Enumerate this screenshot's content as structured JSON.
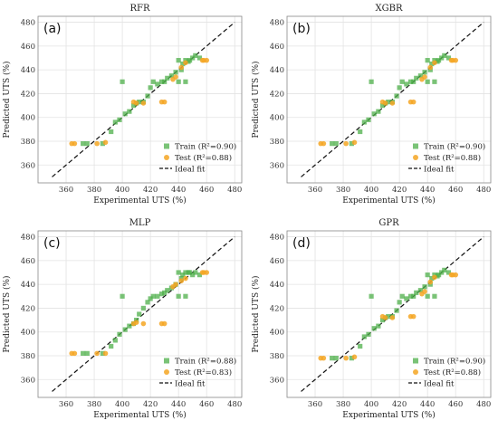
{
  "colors": {
    "train": "#4daf4a",
    "train_dark": "#2e7d32",
    "test": "#f5a623",
    "ideal": "#111111",
    "grid": "#e3e3e3",
    "frame": "#888888"
  },
  "chart_data": [
    {
      "type": "scatter",
      "title": "RFR",
      "panel_label": "(a)",
      "xlabel": "Experimental UTS (%)",
      "ylabel": "Predicted UTS (%)",
      "xlim": [
        340,
        485
      ],
      "ylim": [
        345,
        485
      ],
      "xticks": [
        "360",
        "380",
        "400",
        "420",
        "440",
        "460",
        "480"
      ],
      "yticks": [
        "360",
        "380",
        "400",
        "420",
        "440",
        "460",
        "480"
      ],
      "grid": true,
      "legend_position": "lower-right",
      "legend": [
        "Train (R²=0.90)",
        "Test (R²=0.88)",
        "Ideal fit"
      ],
      "ideal_fit": [
        [
          350,
          350
        ],
        [
          480,
          480
        ]
      ],
      "series": [
        {
          "name": "Train (R²=0.90)",
          "marker": "square",
          "points": [
            [
              372,
              378
            ],
            [
              375,
              378
            ],
            [
              386,
              378
            ],
            [
              392,
              388
            ],
            [
              395,
              396
            ],
            [
              398,
              398
            ],
            [
              400,
              430
            ],
            [
              402,
              403
            ],
            [
              405,
              405
            ],
            [
              408,
              410
            ],
            [
              410,
              412
            ],
            [
              412,
              413
            ],
            [
              415,
              413
            ],
            [
              418,
              418
            ],
            [
              420,
              425
            ],
            [
              422,
              430
            ],
            [
              425,
              428
            ],
            [
              428,
              430
            ],
            [
              430,
              430
            ],
            [
              432,
              433
            ],
            [
              435,
              435
            ],
            [
              438,
              438
            ],
            [
              440,
              430
            ],
            [
              440,
              448
            ],
            [
              442,
              440
            ],
            [
              443,
              445
            ],
            [
              445,
              448
            ],
            [
              445,
              430
            ],
            [
              447,
              447
            ],
            [
              448,
              448
            ],
            [
              450,
              450
            ],
            [
              452,
              452
            ],
            [
              455,
              450
            ]
          ]
        },
        {
          "name": "Test (R²=0.88)",
          "marker": "circle",
          "points": [
            [
              364,
              378
            ],
            [
              366,
              378
            ],
            [
              382,
              378
            ],
            [
              388,
              379
            ],
            [
              408,
              413
            ],
            [
              410,
              412
            ],
            [
              415,
              412
            ],
            [
              428,
              413
            ],
            [
              430,
              413
            ],
            [
              436,
              432
            ],
            [
              438,
              434
            ],
            [
              442,
              442
            ],
            [
              445,
              446
            ],
            [
              457,
              448
            ],
            [
              458,
              448
            ],
            [
              460,
              448
            ]
          ]
        }
      ]
    },
    {
      "type": "scatter",
      "title": "XGBR",
      "panel_label": "(b)",
      "xlabel": "Experimental UTS (%)",
      "ylabel": "Predicted UTS (%)",
      "xlim": [
        340,
        485
      ],
      "ylim": [
        345,
        485
      ],
      "xticks": [
        "360",
        "380",
        "400",
        "420",
        "440",
        "460",
        "480"
      ],
      "yticks": [
        "360",
        "380",
        "400",
        "420",
        "440",
        "460",
        "480"
      ],
      "grid": true,
      "legend_position": "lower-right",
      "legend": [
        "Train (R²=0.90)",
        "Test (R²=0.88)",
        "Ideal fit"
      ],
      "ideal_fit": [
        [
          350,
          350
        ],
        [
          480,
          480
        ]
      ],
      "series": [
        {
          "name": "Train (R²=0.90)",
          "marker": "square",
          "points": [
            [
              372,
              378
            ],
            [
              375,
              378
            ],
            [
              386,
              378
            ],
            [
              392,
              388
            ],
            [
              395,
              396
            ],
            [
              398,
              398
            ],
            [
              400,
              430
            ],
            [
              402,
              403
            ],
            [
              405,
              405
            ],
            [
              408,
              410
            ],
            [
              410,
              412
            ],
            [
              412,
              413
            ],
            [
              415,
              413
            ],
            [
              418,
              418
            ],
            [
              420,
              425
            ],
            [
              422,
              430
            ],
            [
              425,
              428
            ],
            [
              428,
              430
            ],
            [
              430,
              430
            ],
            [
              432,
              433
            ],
            [
              435,
              435
            ],
            [
              438,
              438
            ],
            [
              440,
              430
            ],
            [
              440,
              448
            ],
            [
              442,
              440
            ],
            [
              443,
              445
            ],
            [
              445,
              448
            ],
            [
              445,
              430
            ],
            [
              447,
              447
            ],
            [
              448,
              448
            ],
            [
              450,
              450
            ],
            [
              452,
              452
            ],
            [
              455,
              450
            ]
          ]
        },
        {
          "name": "Test (R²=0.88)",
          "marker": "circle",
          "points": [
            [
              364,
              378
            ],
            [
              366,
              378
            ],
            [
              382,
              378
            ],
            [
              388,
              379
            ],
            [
              408,
              413
            ],
            [
              410,
              412
            ],
            [
              415,
              412
            ],
            [
              428,
              413
            ],
            [
              430,
              413
            ],
            [
              436,
              432
            ],
            [
              438,
              434
            ],
            [
              442,
              442
            ],
            [
              445,
              446
            ],
            [
              457,
              448
            ],
            [
              458,
              448
            ],
            [
              460,
              448
            ]
          ]
        }
      ]
    },
    {
      "type": "scatter",
      "title": "MLP",
      "panel_label": "(c)",
      "xlabel": "Experimental UTS (%)",
      "ylabel": "Predicted UTS (%)",
      "xlim": [
        340,
        485
      ],
      "ylim": [
        345,
        485
      ],
      "xticks": [
        "360",
        "380",
        "400",
        "420",
        "440",
        "460",
        "480"
      ],
      "yticks": [
        "360",
        "380",
        "400",
        "420",
        "440",
        "460",
        "480"
      ],
      "grid": true,
      "legend_position": "lower-right",
      "legend": [
        "Train (R²=0.88)",
        "Test (R²=0.83)",
        "Ideal fit"
      ],
      "ideal_fit": [
        [
          350,
          350
        ],
        [
          480,
          480
        ]
      ],
      "series": [
        {
          "name": "Train (R²=0.88)",
          "marker": "square",
          "points": [
            [
              372,
              382
            ],
            [
              375,
              382
            ],
            [
              386,
              382
            ],
            [
              392,
              388
            ],
            [
              395,
              393
            ],
            [
              398,
              398
            ],
            [
              400,
              430
            ],
            [
              402,
              402
            ],
            [
              405,
              405
            ],
            [
              408,
              407
            ],
            [
              410,
              410
            ],
            [
              412,
              415
            ],
            [
              415,
              420
            ],
            [
              418,
              425
            ],
            [
              420,
              428
            ],
            [
              422,
              430
            ],
            [
              425,
              430
            ],
            [
              428,
              432
            ],
            [
              430,
              433
            ],
            [
              432,
              435
            ],
            [
              435,
              437
            ],
            [
              438,
              440
            ],
            [
              440,
              430
            ],
            [
              440,
              450
            ],
            [
              442,
              445
            ],
            [
              443,
              448
            ],
            [
              445,
              450
            ],
            [
              445,
              430
            ],
            [
              447,
              450
            ],
            [
              448,
              450
            ],
            [
              450,
              448
            ],
            [
              452,
              450
            ],
            [
              455,
              448
            ]
          ]
        },
        {
          "name": "Test (R²=0.83)",
          "marker": "circle",
          "points": [
            [
              364,
              382
            ],
            [
              366,
              382
            ],
            [
              382,
              382
            ],
            [
              388,
              382
            ],
            [
              408,
              407
            ],
            [
              410,
              408
            ],
            [
              415,
              407
            ],
            [
              428,
              407
            ],
            [
              430,
              407
            ],
            [
              436,
              438
            ],
            [
              438,
              440
            ],
            [
              442,
              443
            ],
            [
              445,
              445
            ],
            [
              457,
              450
            ],
            [
              458,
              450
            ],
            [
              460,
              450
            ]
          ]
        }
      ]
    },
    {
      "type": "scatter",
      "title": "GPR",
      "panel_label": "(d)",
      "xlabel": "Experimental UTS (%)",
      "ylabel": "Predicted UTS (%)",
      "xlim": [
        340,
        485
      ],
      "ylim": [
        345,
        485
      ],
      "xticks": [
        "360",
        "380",
        "400",
        "420",
        "440",
        "460",
        "480"
      ],
      "yticks": [
        "360",
        "380",
        "400",
        "420",
        "440",
        "460",
        "480"
      ],
      "grid": true,
      "legend_position": "lower-right",
      "legend": [
        "Train (R²=0.90)",
        "Test (R²=0.88)",
        "Ideal fit"
      ],
      "ideal_fit": [
        [
          350,
          350
        ],
        [
          480,
          480
        ]
      ],
      "series": [
        {
          "name": "Train (R²=0.90)",
          "marker": "square",
          "points": [
            [
              372,
              378
            ],
            [
              375,
              378
            ],
            [
              386,
              378
            ],
            [
              392,
              388
            ],
            [
              395,
              396
            ],
            [
              398,
              398
            ],
            [
              400,
              430
            ],
            [
              402,
              403
            ],
            [
              405,
              405
            ],
            [
              408,
              410
            ],
            [
              410,
              412
            ],
            [
              412,
              413
            ],
            [
              415,
              413
            ],
            [
              418,
              418
            ],
            [
              420,
              425
            ],
            [
              422,
              430
            ],
            [
              425,
              428
            ],
            [
              428,
              430
            ],
            [
              430,
              430
            ],
            [
              432,
              433
            ],
            [
              435,
              435
            ],
            [
              438,
              438
            ],
            [
              440,
              430
            ],
            [
              440,
              448
            ],
            [
              442,
              440
            ],
            [
              443,
              445
            ],
            [
              445,
              448
            ],
            [
              445,
              430
            ],
            [
              447,
              447
            ],
            [
              448,
              448
            ],
            [
              450,
              450
            ],
            [
              452,
              452
            ],
            [
              455,
              450
            ]
          ]
        },
        {
          "name": "Test (R²=0.88)",
          "marker": "circle",
          "points": [
            [
              364,
              378
            ],
            [
              366,
              378
            ],
            [
              382,
              378
            ],
            [
              388,
              379
            ],
            [
              408,
              413
            ],
            [
              410,
              412
            ],
            [
              415,
              412
            ],
            [
              428,
              413
            ],
            [
              430,
              413
            ],
            [
              436,
              432
            ],
            [
              438,
              434
            ],
            [
              442,
              442
            ],
            [
              445,
              446
            ],
            [
              457,
              448
            ],
            [
              458,
              448
            ],
            [
              460,
              448
            ]
          ]
        }
      ]
    }
  ]
}
